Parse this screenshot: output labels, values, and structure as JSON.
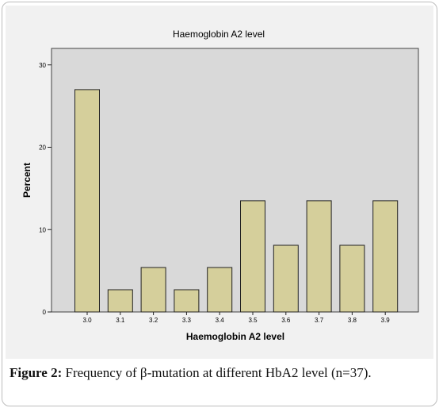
{
  "chart_data": {
    "type": "bar",
    "title": "Haemoglobin A2 level",
    "xlabel": "Haemoglobin A2 level",
    "ylabel": "Percent",
    "categories": [
      "3.0",
      "3.1",
      "3.2",
      "3.3",
      "3.4",
      "3.5",
      "3.6",
      "3.7",
      "3.8",
      "3.9"
    ],
    "values": [
      27.0,
      2.7,
      5.4,
      2.7,
      5.4,
      13.5,
      8.1,
      13.5,
      8.1,
      13.5
    ],
    "ylim": [
      0,
      32
    ],
    "yticks": [
      "0",
      "10",
      "20",
      "30"
    ],
    "grid": false,
    "colors": {
      "bar_fill": "#d5cf9b",
      "bar_stroke": "#222222",
      "plot_background": "#d9d9d9",
      "outer_background": "#f1f1f1"
    }
  },
  "caption": {
    "label": "Figure 2:",
    "text": " Frequency of β-mutation at different HbA2 level (n=37)."
  }
}
